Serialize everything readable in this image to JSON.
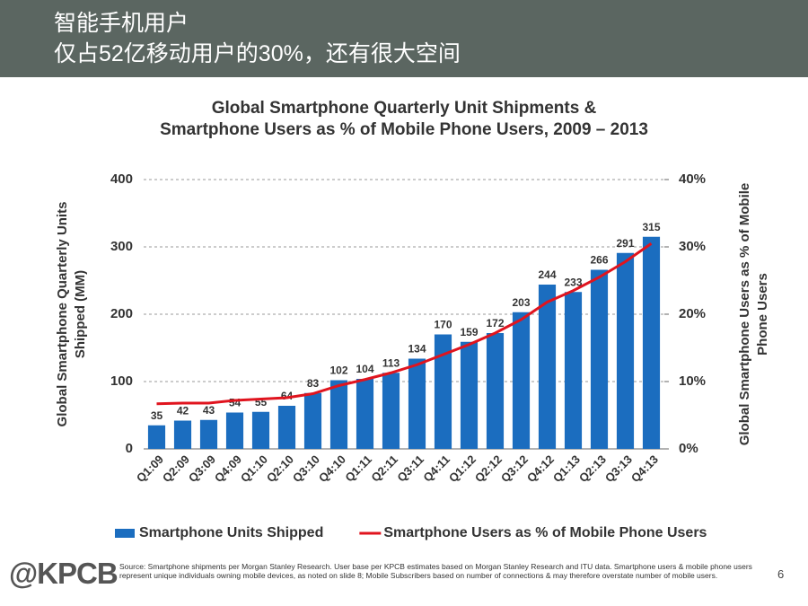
{
  "header": {
    "title_lines": [
      "智能手机用户",
      "仅占52亿移动用户的30%，还有很大空间"
    ]
  },
  "chart_data": {
    "type": "bar_line",
    "title": [
      "Global Smartphone Quarterly Unit Shipments &",
      "Smartphone Users as % of Mobile Phone Users, 2009 – 2013"
    ],
    "y_label": [
      "Global Smartphone Quarterly Units",
      "Shipped (MM)"
    ],
    "y2_label": [
      "Global Smartphone Users as % of Mobile",
      "Phone Users"
    ],
    "categories": [
      "Q1:09",
      "Q2:09",
      "Q3:09",
      "Q4:09",
      "Q1:10",
      "Q2:10",
      "Q3:10",
      "Q4:10",
      "Q1:11",
      "Q2:11",
      "Q3:11",
      "Q4:11",
      "Q1:12",
      "Q2:12",
      "Q3:12",
      "Q4:12",
      "Q1:13",
      "Q2:13",
      "Q3:13",
      "Q4:13"
    ],
    "series": [
      {
        "name": "Smartphone Units Shipped",
        "color": "#1b6dbf",
        "type": "bar",
        "values": [
          35,
          42,
          43,
          54,
          55,
          64,
          83,
          102,
          104,
          113,
          134,
          170,
          159,
          172,
          203,
          244,
          233,
          266,
          291,
          315
        ]
      },
      {
        "name": "Smartphone Users as % of Mobile Phone Users",
        "color": "#e0141e",
        "type": "line",
        "axis": "y2",
        "values": [
          6.7,
          6.8,
          6.8,
          7.2,
          7.4,
          7.6,
          8.2,
          9.4,
          10.3,
          11.3,
          12.5,
          14.0,
          15.5,
          17.2,
          19.2,
          21.8,
          23.5,
          25.5,
          27.8,
          30.5
        ]
      }
    ],
    "ylim": [
      0,
      400
    ],
    "yticks": [
      0,
      100,
      200,
      300,
      400
    ],
    "y2lim": [
      0,
      40
    ],
    "y2ticks": [
      {
        "value": 0,
        "label": "0%"
      },
      {
        "value": 10,
        "label": "10%"
      },
      {
        "value": 20,
        "label": "20%"
      },
      {
        "value": 30,
        "label": "30%"
      },
      {
        "value": 40,
        "label": "40%"
      }
    ],
    "grid": true,
    "legend": "bottom"
  },
  "source": "Source: Smartphone shipments per Morgan Stanley Research. User base per KPCB estimates based on Morgan Stanley Research and ITU data. Smartphone users & mobile phone users represent unique individuals owning mobile devices, as noted on slide 8; Mobile Subscribers based on number of connections & may therefore overstate number of mobile users.",
  "logo": "@KPCB",
  "page_number": "6"
}
